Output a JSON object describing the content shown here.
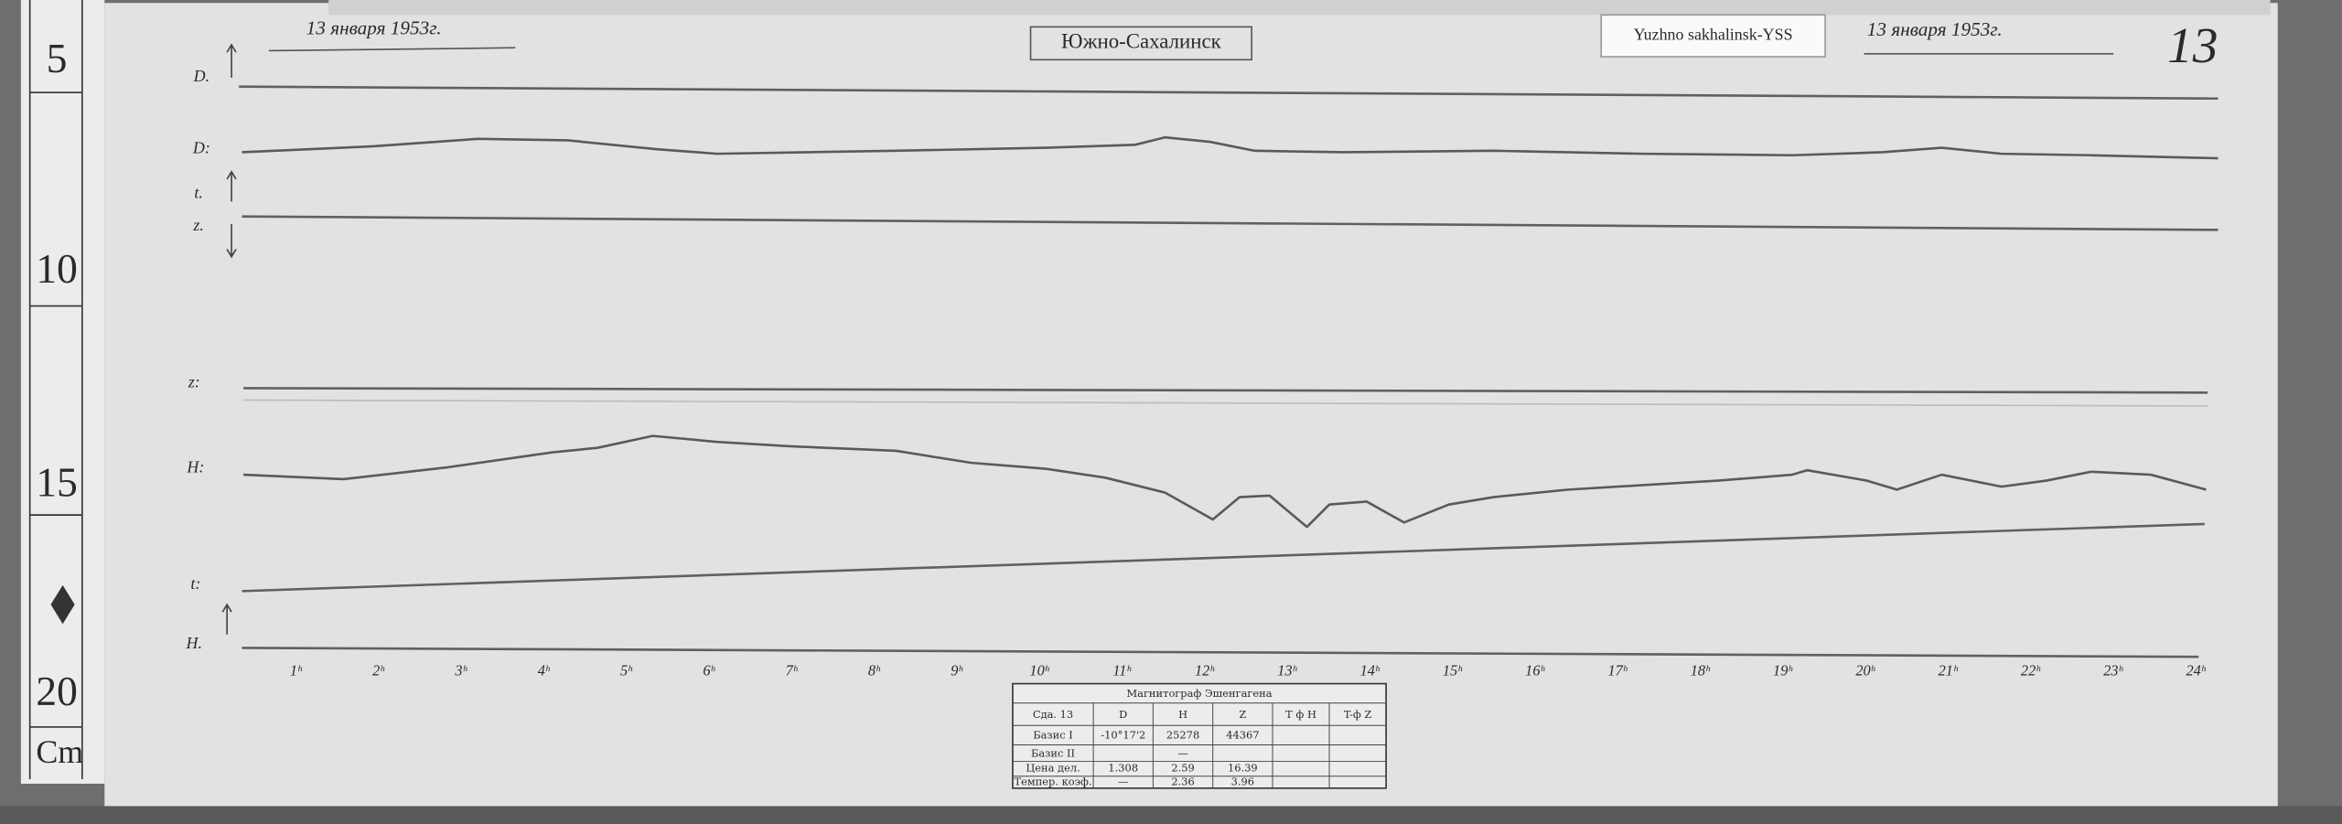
{
  "header": {
    "date_left": "13 января 1953г.",
    "station": "Южно-Сахалинск",
    "tag": "Yuzhno sakhalinsk-YSS",
    "date_right": "13 января 1953г.",
    "sheet_number": "13"
  },
  "ruler": {
    "marks": [
      "5",
      "10",
      "15",
      "20"
    ],
    "unit": "Cm"
  },
  "traces": [
    "D.",
    "D:",
    "t.",
    "z.",
    "z:",
    "H:",
    "t:",
    "H."
  ],
  "hour_labels": [
    "1ʰ",
    "2ʰ",
    "3ʰ",
    "4ʰ",
    "5ʰ",
    "6ʰ",
    "7ʰ",
    "8ʰ",
    "9ʰ",
    "10ʰ",
    "11ʰ",
    "12ʰ",
    "13ʰ",
    "14ʰ",
    "15ʰ",
    "16ʰ",
    "17ʰ",
    "18ʰ",
    "19ʰ",
    "20ʰ",
    "21ʰ",
    "22ʰ",
    "23ʰ",
    "24ʰ"
  ],
  "table": {
    "title": "Магнитограф Эшенгагена",
    "header": {
      "label": "Сда. 13",
      "D": "D",
      "H": "H",
      "Z": "Z",
      "TH": "T ф H",
      "TZ": "T-ф Z"
    },
    "rows": [
      {
        "label": "Базис I",
        "D": "-10°17'2",
        "H": "25278",
        "Z": "44367"
      },
      {
        "label": "Базис II",
        "H": "—"
      },
      {
        "label": "Цена дел.",
        "D": "1.308",
        "H": "2.59",
        "Z": "16.39"
      },
      {
        "label": "Темпер. коэф.",
        "D": "—",
        "H": "2.36",
        "Z": "3.96"
      }
    ]
  }
}
